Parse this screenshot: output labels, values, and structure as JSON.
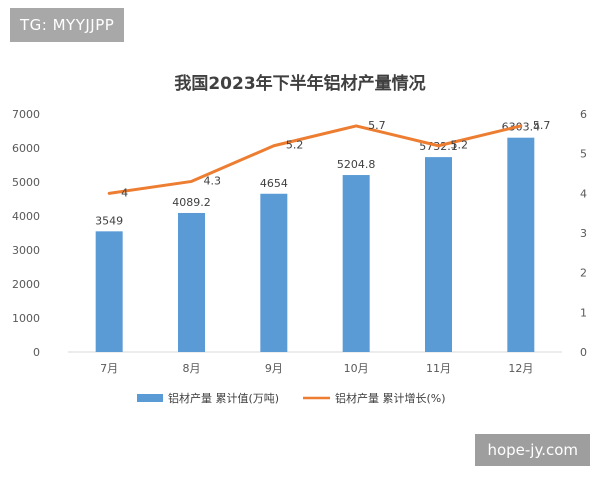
{
  "watermarks": {
    "top": "TG: MYYJJPP",
    "bottom": "hope-jy.com"
  },
  "chart_data": {
    "type": "bar",
    "title": "我国2023年下半年铝材产量情况",
    "categories": [
      "7月",
      "8月",
      "9月",
      "10月",
      "11月",
      "12月"
    ],
    "series": [
      {
        "name": "铝材产量 累计值(万吨)",
        "type": "bar",
        "axis": "left",
        "color": "#5b9bd5",
        "values": [
          3549,
          4089.2,
          4654,
          5204.8,
          5732.1,
          6303.4
        ],
        "labels": [
          "3549",
          "4089.2",
          "4654",
          "5204.8",
          "5732.1",
          "6303.4"
        ]
      },
      {
        "name": "铝材产量 累计增长(%)",
        "type": "line",
        "axis": "right",
        "color": "#ed7d31",
        "values": [
          4,
          4.3,
          5.2,
          5.7,
          5.2,
          5.7
        ],
        "labels": [
          "4",
          "4.3",
          "5.2",
          "5.7",
          "5.2",
          "5.7"
        ]
      }
    ],
    "y_left": {
      "min": 0,
      "max": 7000,
      "ticks": [
        "0",
        "1000",
        "2000",
        "3000",
        "4000",
        "5000",
        "6000",
        "7000"
      ]
    },
    "y_right": {
      "min": 0,
      "max": 6,
      "ticks": [
        "0",
        "1",
        "2",
        "3",
        "4",
        "5",
        "6"
      ]
    },
    "grid": false,
    "legend": "bottom"
  }
}
